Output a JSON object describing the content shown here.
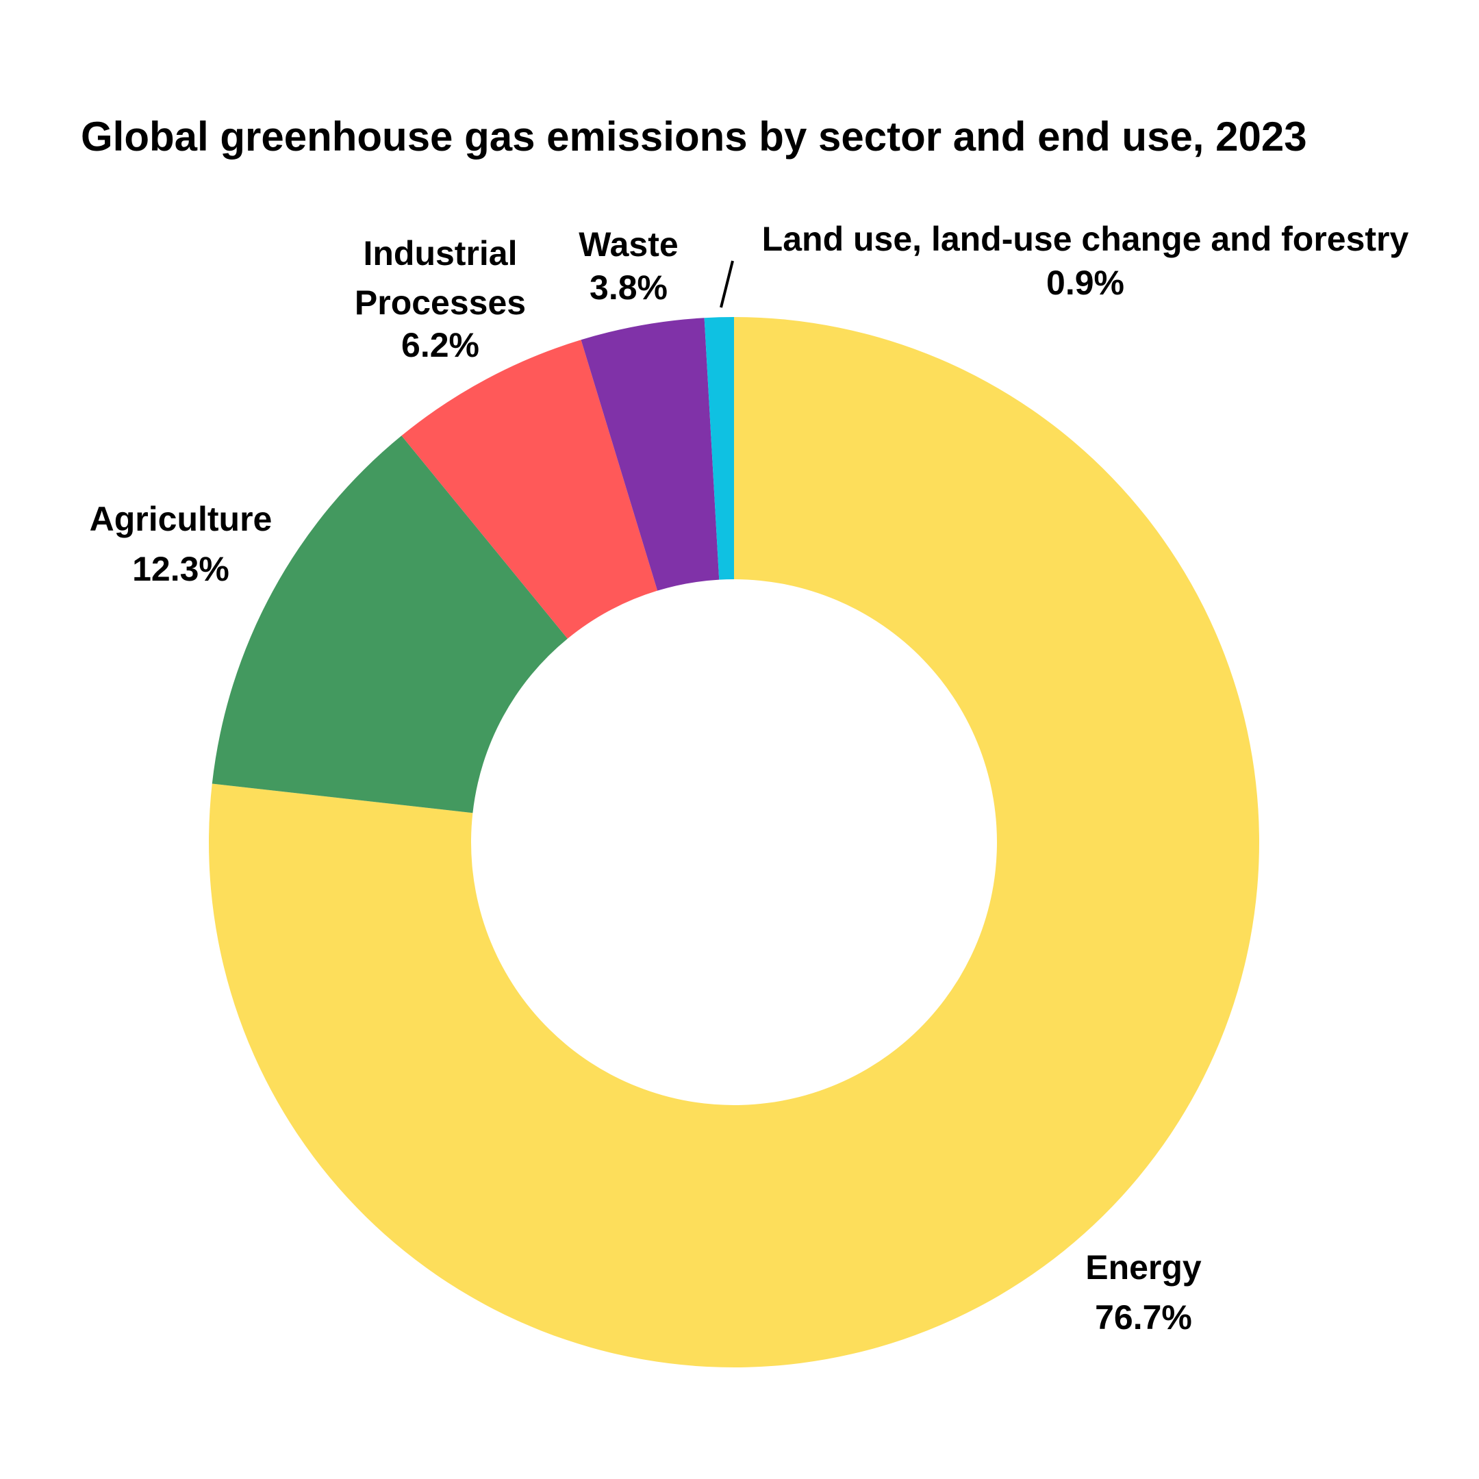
{
  "chart_data": {
    "type": "pie",
    "variant": "donut",
    "title": "Global greenhouse gas emissions by sector and end use, 2023",
    "categories": [
      "Energy",
      "Agriculture",
      "Industrial Processes",
      "Waste",
      "Land use, land-use change and forestry"
    ],
    "values": [
      76.7,
      12.3,
      6.2,
      3.8,
      0.9
    ],
    "value_labels": [
      "76.7%",
      "12.3%",
      "6.2%",
      "3.8%",
      "0.9%"
    ],
    "colors": [
      "#FDDE5B",
      "#43995F",
      "#FF5959",
      "#8032A8",
      "#0FC1E2"
    ],
    "start": "12 o'clock",
    "direction": "clockwise",
    "legend": "none"
  },
  "labels": {
    "industrial_line1": "Industrial",
    "industrial_line2": "Processes"
  }
}
